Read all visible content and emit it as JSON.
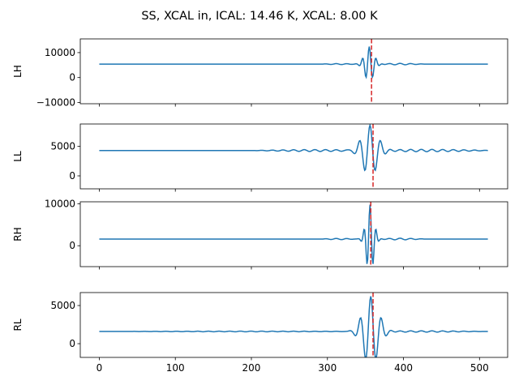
{
  "figure": {
    "title": "SS, XCAL in, ICAL: 14.46 K, XCAL: 8.00 K"
  },
  "chart_data": [
    {
      "type": "line",
      "ylabel": "LH",
      "xlim": [
        -25,
        537
      ],
      "ylim": [
        -10500,
        15500
      ],
      "yticks": [
        -10000,
        0,
        10000
      ],
      "ytick_labels": [
        "−10000",
        "0",
        "10000"
      ],
      "xticks": [
        0,
        100,
        200,
        300,
        400,
        500
      ],
      "show_xtick_labels": false,
      "baseline": 5400,
      "peak_center": 355,
      "packet": {
        "amp": 7000,
        "sigma": 6,
        "period": 9
      },
      "wiggles": [
        {
          "start": 290,
          "end": 340,
          "amp": 200,
          "period": 14
        },
        {
          "start": 365,
          "end": 430,
          "amp": 300,
          "period": 14
        }
      ],
      "vline": {
        "x": 358,
        "color": "#d62728"
      },
      "line_color": "#1f77b4"
    },
    {
      "type": "line",
      "ylabel": "LL",
      "xlim": [
        -25,
        537
      ],
      "ylim": [
        -2200,
        8800
      ],
      "yticks": [
        0,
        5000
      ],
      "ytick_labels": [
        "0",
        "5000"
      ],
      "xticks": [
        0,
        100,
        200,
        300,
        400,
        500
      ],
      "show_xtick_labels": false,
      "baseline": 4300,
      "peak_center": 356,
      "packet": {
        "amp": 4300,
        "sigma": 10,
        "period": 14
      },
      "wiggles": [
        {
          "start": 200,
          "end": 345,
          "amp": 220,
          "period": 14
        },
        {
          "start": 365,
          "end": 520,
          "amp": 280,
          "period": 14
        }
      ],
      "vline": {
        "x": 360,
        "color": "#d62728"
      },
      "line_color": "#1f77b4"
    },
    {
      "type": "line",
      "ylabel": "RH",
      "xlim": [
        -25,
        537
      ],
      "ylim": [
        -5000,
        10500
      ],
      "yticks": [
        0,
        10000
      ],
      "ytick_labels": [
        "0",
        "10000"
      ],
      "xticks": [
        0,
        100,
        200,
        300,
        400,
        500
      ],
      "show_xtick_labels": false,
      "baseline": 1600,
      "peak_center": 356,
      "packet": {
        "amp": 8200,
        "sigma": 5,
        "period": 8
      },
      "wiggles": [
        {
          "start": 290,
          "end": 340,
          "amp": 150,
          "period": 14
        },
        {
          "start": 365,
          "end": 430,
          "amp": 200,
          "period": 14
        }
      ],
      "vline": {
        "x": 357,
        "color": "#d62728"
      },
      "line_color": "#1f77b4"
    },
    {
      "type": "line",
      "ylabel": "RL",
      "xlim": [
        -25,
        537
      ],
      "ylim": [
        -1800,
        6700
      ],
      "yticks": [
        0,
        5000
      ],
      "ytick_labels": [
        "0",
        "5000"
      ],
      "xticks": [
        0,
        100,
        200,
        300,
        400,
        500
      ],
      "xtick_labels": [
        "0",
        "100",
        "200",
        "300",
        "400",
        "500"
      ],
      "show_xtick_labels": true,
      "baseline": 1600,
      "peak_center": 357,
      "packet": {
        "amp": 4600,
        "sigma": 10,
        "period": 14
      },
      "wiggles": [
        {
          "start": 20,
          "end": 345,
          "amp": 80,
          "period": 14
        },
        {
          "start": 365,
          "end": 510,
          "amp": 120,
          "period": 14
        }
      ],
      "vline": {
        "x": 360,
        "color": "#d62728"
      },
      "line_color": "#1f77b4"
    }
  ]
}
